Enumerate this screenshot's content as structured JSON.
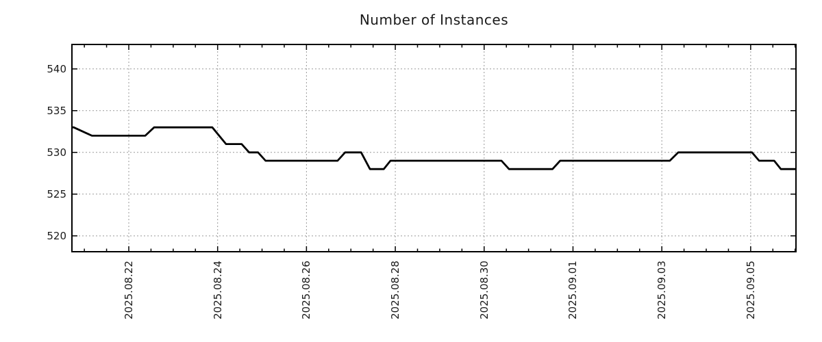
{
  "title": "Number of Instances",
  "colors": {
    "line": "#000000",
    "grid": "#999999",
    "axis": "#000000",
    "text": "#1a1a1a",
    "background": "#ffffff"
  },
  "chart_data": {
    "type": "line",
    "title": "Number of Instances",
    "legend": "none",
    "grid": "dotted",
    "x_axis": {
      "tick_labels": [
        "2025.08.22",
        "2025.08.24",
        "2025.08.26",
        "2025.08.28",
        "2025.08.30",
        "2025.09.01",
        "2025.09.03",
        "2025.09.05"
      ],
      "tick_day_offsets": [
        0,
        2,
        4,
        6,
        8,
        10,
        12,
        14
      ],
      "range_day_offsets": [
        -1.28,
        15.02
      ],
      "minor_tick_step_days": 0.5,
      "minor_tick_start": -1.0,
      "minor_tick_end": 15.0,
      "label_rotation_deg": 90
    },
    "y_axis": {
      "tick_labels": [
        "520",
        "525",
        "530",
        "535",
        "540"
      ],
      "tick_values": [
        520,
        525,
        530,
        535,
        540
      ],
      "range": [
        518.1,
        542.93
      ]
    },
    "series": [
      {
        "name": "instances",
        "color": "#000000",
        "points": [
          [
            -1.28,
            533
          ],
          [
            -1.24,
            533
          ],
          [
            -0.83,
            532
          ],
          [
            0.37,
            532
          ],
          [
            0.57,
            533
          ],
          [
            1.88,
            533
          ],
          [
            2.19,
            531
          ],
          [
            2.54,
            531
          ],
          [
            2.71,
            530
          ],
          [
            2.91,
            530
          ],
          [
            3.08,
            529
          ],
          [
            4.7,
            529
          ],
          [
            4.87,
            530
          ],
          [
            5.23,
            530
          ],
          [
            5.43,
            528
          ],
          [
            5.74,
            528
          ],
          [
            5.89,
            529
          ],
          [
            8.39,
            529
          ],
          [
            8.56,
            528
          ],
          [
            9.54,
            528
          ],
          [
            9.71,
            529
          ],
          [
            12.18,
            529
          ],
          [
            12.37,
            530
          ],
          [
            14.03,
            530
          ],
          [
            14.19,
            529
          ],
          [
            14.53,
            529
          ],
          [
            14.68,
            528
          ],
          [
            15.02,
            528
          ]
        ]
      }
    ]
  }
}
